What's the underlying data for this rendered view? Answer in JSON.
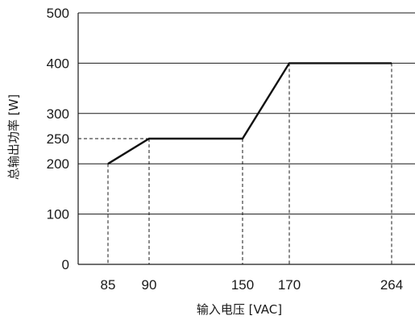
{
  "chart_data": {
    "type": "line",
    "xlabel": "输入电压 [VAC]",
    "ylabel": "总输出功率 [W]",
    "x_ticks": [
      "85",
      "90",
      "150",
      "170",
      "264"
    ],
    "y_ticks": [
      "0",
      "100",
      "200",
      "250",
      "300",
      "400",
      "500"
    ],
    "x": [
      85,
      90,
      150,
      170,
      264
    ],
    "y": [
      200,
      250,
      250,
      400,
      400
    ],
    "ylim": [
      0,
      500
    ],
    "grid": "horizontal at 100, 200, 300, 400",
    "reference_lines": "dashed vertical lines at each x point; dashed horizontal line at 250"
  }
}
